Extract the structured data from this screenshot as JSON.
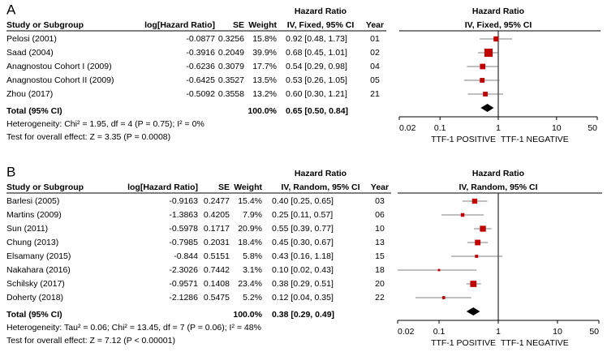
{
  "chart_data": [
    {
      "type": "forest",
      "panel_label": "A",
      "column_group": "Hazard Ratio",
      "columns": [
        "Study or Subgroup",
        "log[Hazard Ratio]",
        "SE",
        "Weight",
        "IV, Fixed, 95% CI",
        "Year"
      ],
      "plot_title": "Hazard Ratio",
      "plot_subtitle": "IV, Fixed, 95% CI",
      "studies": [
        "Pelosi (2001)",
        "Saad (2004)",
        "Anagnostou Cohort I (2009)",
        "Anagnostou Cohort II (2009)",
        "Zhou (2017)"
      ],
      "log_hr": [
        -0.0877,
        -0.3916,
        -0.6236,
        -0.6425,
        -0.5092
      ],
      "se": [
        0.3256,
        0.2049,
        0.3079,
        0.3527,
        0.3558
      ],
      "weights": [
        15.8,
        39.9,
        17.7,
        13.5,
        13.2
      ],
      "weight_labels": [
        "15.8%",
        "39.9%",
        "17.7%",
        "13.5%",
        "13.2%"
      ],
      "hr": [
        0.92,
        0.68,
        0.54,
        0.53,
        0.6
      ],
      "ci_low": [
        0.48,
        0.45,
        0.29,
        0.26,
        0.3
      ],
      "ci_high": [
        1.73,
        1.01,
        0.98,
        1.05,
        1.21
      ],
      "hr_labels": [
        "0.92 [0.48, 1.73]",
        "0.68 [0.45, 1.01]",
        "0.54 [0.29, 0.98]",
        "0.53 [0.26, 1.05]",
        "0.60 [0.30, 1.21]"
      ],
      "years": [
        "01",
        "02",
        "04",
        "05",
        "21"
      ],
      "total": {
        "label": "Total (95% CI)",
        "weight": 100,
        "weight_label": "100.0%",
        "hr": 0.65,
        "ci_low": 0.5,
        "ci_high": 0.84,
        "hr_label": "0.65 [0.50, 0.84]"
      },
      "heterogeneity": "Heterogeneity: Chi² = 1.95, df = 4 (P = 0.75); I² = 0%",
      "overall_effect": "Test for overall effect: Z = 3.35 (P = 0.0008)",
      "xscale": "log",
      "xlim": [
        0.02,
        50
      ],
      "xticks": [
        0.02,
        0.1,
        1,
        10,
        50
      ],
      "xlabel_left": "TTF-1 POSITIVE",
      "xlabel_right": "TTF-1 NEGATIVE",
      "color": "#c00000"
    },
    {
      "type": "forest",
      "panel_label": "B",
      "column_group": "Hazard Ratio",
      "columns": [
        "Study or Subgroup",
        "log[Hazard Ratio]",
        "SE",
        "Weight",
        "IV, Random, 95% CI",
        "Year"
      ],
      "plot_title": "Hazard Ratio",
      "plot_subtitle": "IV, Random, 95% CI",
      "studies": [
        "Barlesi (2005)",
        "Martins (2009)",
        "Sun (2011)",
        "Chung (2013)",
        "Elsamany (2015)",
        "Nakahara (2016)",
        "Schilsky (2017)",
        "Doherty (2018)"
      ],
      "log_hr": [
        -0.9163,
        -1.3863,
        -0.5978,
        -0.7985,
        -0.844,
        -2.3026,
        -0.9571,
        -2.1286
      ],
      "se": [
        0.2477,
        0.4205,
        0.1717,
        0.2031,
        0.5151,
        0.7442,
        0.1408,
        0.5475
      ],
      "weights": [
        15.4,
        7.9,
        20.9,
        18.4,
        5.8,
        3.1,
        23.4,
        5.2
      ],
      "weight_labels": [
        "15.4%",
        "7.9%",
        "20.9%",
        "18.4%",
        "5.8%",
        "3.1%",
        "23.4%",
        "5.2%"
      ],
      "hr": [
        0.4,
        0.25,
        0.55,
        0.45,
        0.43,
        0.1,
        0.38,
        0.12
      ],
      "ci_low": [
        0.25,
        0.11,
        0.39,
        0.3,
        0.16,
        0.02,
        0.29,
        0.04
      ],
      "ci_high": [
        0.65,
        0.57,
        0.77,
        0.67,
        1.18,
        0.43,
        0.51,
        0.35
      ],
      "hr_labels": [
        "0.40 [0.25, 0.65]",
        "0.25 [0.11, 0.57]",
        "0.55 [0.39, 0.77]",
        "0.45 [0.30, 0.67]",
        "0.43 [0.16, 1.18]",
        "0.10 [0.02, 0.43]",
        "0.38 [0.29, 0.51]",
        "0.12 [0.04, 0.35]"
      ],
      "years": [
        "03",
        "06",
        "10",
        "13",
        "15",
        "18",
        "20",
        "22"
      ],
      "total": {
        "label": "Total (95% CI)",
        "weight": 100,
        "weight_label": "100.0%",
        "hr": 0.38,
        "ci_low": 0.29,
        "ci_high": 0.49,
        "hr_label": "0.38 [0.29, 0.49]"
      },
      "heterogeneity": "Heterogeneity: Tau² = 0.06; Chi² = 13.45, df = 7 (P = 0.06); I² = 48%",
      "overall_effect": "Test for overall effect: Z = 7.12 (P < 0.00001)",
      "xscale": "log",
      "xlim": [
        0.02,
        50
      ],
      "xticks": [
        0.02,
        0.1,
        1,
        10,
        50
      ],
      "xlabel_left": "TTF-1 POSITIVE",
      "xlabel_right": "TTF-1 NEGATIVE",
      "color": "#c00000"
    }
  ]
}
